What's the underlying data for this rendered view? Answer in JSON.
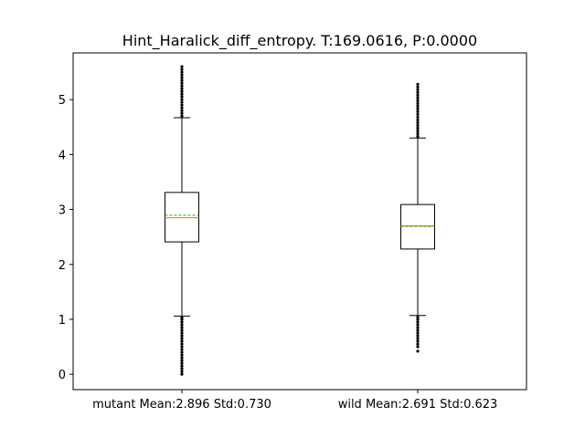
{
  "chart_data": {
    "type": "box",
    "title": "Hint_Haralick_diff_entropy. T:169.0616, P:0.0000",
    "xlabel": "",
    "ylabel": "",
    "categories": [
      "mutant Mean:2.896 Std:0.730",
      "wild Mean:2.691 Std:0.623"
    ],
    "ylim": [
      -0.28,
      5.85
    ],
    "yticks": [
      0,
      1,
      2,
      3,
      4,
      5
    ],
    "grid": false,
    "boxes": [
      {
        "whisker_low": 1.06,
        "q1": 2.41,
        "median": 2.85,
        "mean": 2.896,
        "q3": 3.31,
        "whisker_high": 4.67,
        "fliers_low": [
          0.0,
          0.05,
          0.1,
          0.15,
          0.2,
          0.25,
          0.3,
          0.35,
          0.4,
          0.45,
          0.5,
          0.55,
          0.6,
          0.65,
          0.7,
          0.75,
          0.8,
          0.85,
          0.9,
          0.95,
          1.0,
          1.03
        ],
        "fliers_high": [
          4.7,
          4.75,
          4.8,
          4.85,
          4.9,
          4.95,
          5.0,
          5.05,
          5.1,
          5.15,
          5.2,
          5.25,
          5.3,
          5.35,
          5.4,
          5.45,
          5.5,
          5.55,
          5.6
        ]
      },
      {
        "whisker_low": 1.07,
        "q1": 2.28,
        "median": 2.7,
        "mean": 2.691,
        "q3": 3.09,
        "whisker_high": 4.3,
        "fliers_low": [
          0.42,
          0.5,
          0.55,
          0.6,
          0.65,
          0.7,
          0.75,
          0.8,
          0.85,
          0.9,
          0.95,
          1.0,
          1.04
        ],
        "fliers_high": [
          4.33,
          4.38,
          4.43,
          4.48,
          4.53,
          4.58,
          4.63,
          4.68,
          4.73,
          4.78,
          4.83,
          4.88,
          4.93,
          4.98,
          5.03,
          5.08,
          5.13,
          5.18,
          5.23,
          5.28
        ]
      }
    ],
    "colors": {
      "box": "#000000",
      "median": "#ff7f0e",
      "mean": "#2ca02c"
    }
  }
}
